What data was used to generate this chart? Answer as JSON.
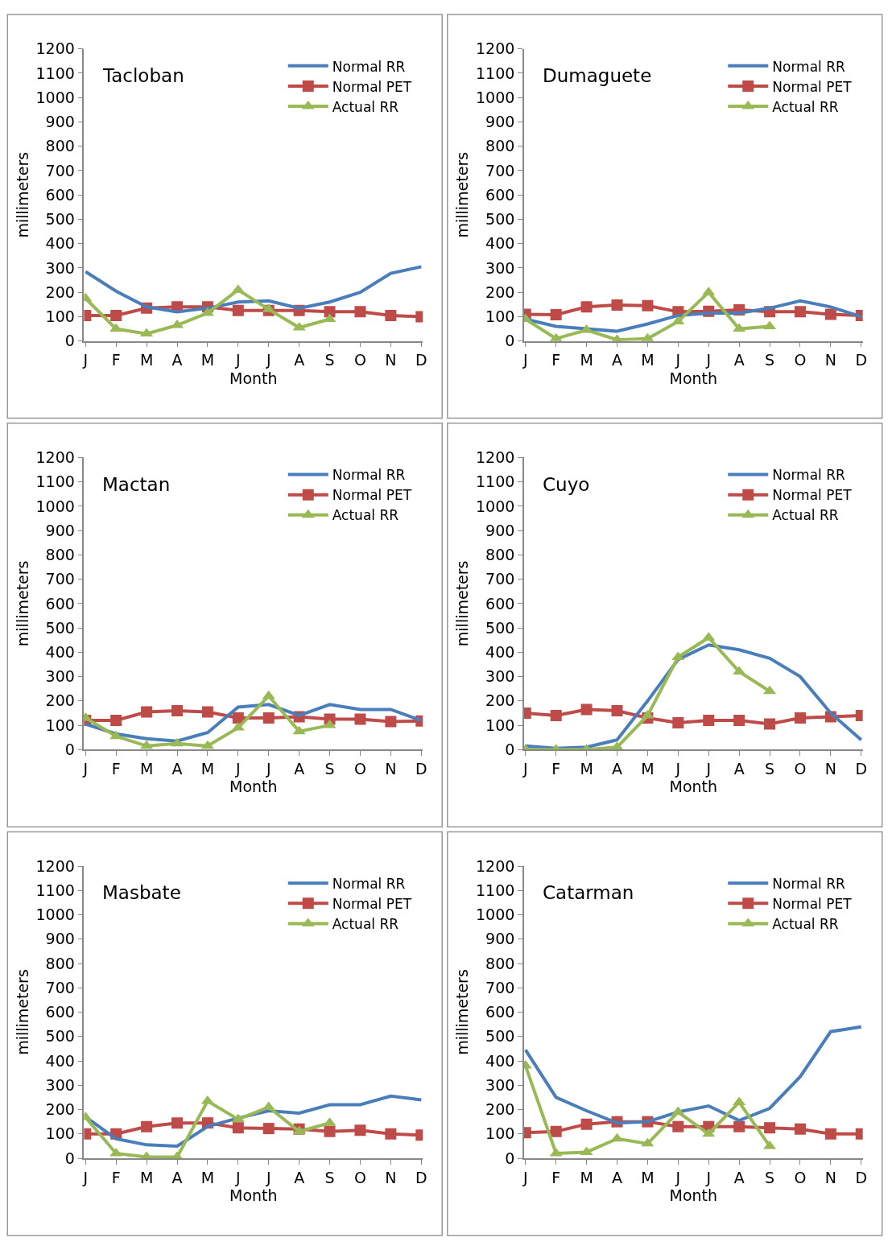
{
  "chart_data": [
    {
      "type": "line",
      "title": "Tacloban",
      "xlabel": "Month",
      "ylabel": "millimeters",
      "categories": [
        "J",
        "F",
        "M",
        "A",
        "M",
        "J",
        "J",
        "A",
        "S",
        "O",
        "N",
        "D"
      ],
      "ylim": [
        0,
        1200
      ],
      "yticks": [
        0,
        100,
        200,
        300,
        400,
        500,
        600,
        700,
        800,
        900,
        1000,
        1100,
        1200
      ],
      "legend": "top right",
      "series": [
        {
          "name": "Normal RR",
          "color": "#4a7ebb",
          "marker": "none",
          "values": [
            285,
            205,
            140,
            120,
            135,
            160,
            165,
            135,
            160,
            200,
            278,
            305
          ]
        },
        {
          "name": "Normal PET",
          "color": "#be4b48",
          "marker": "square",
          "values": [
            105,
            105,
            135,
            140,
            140,
            125,
            125,
            125,
            120,
            120,
            105,
            100
          ]
        },
        {
          "name": "Actual RR",
          "color": "#98b954",
          "marker": "triangle",
          "values": [
            175,
            50,
            30,
            65,
            115,
            210,
            130,
            55,
            90,
            null,
            null,
            null
          ]
        }
      ]
    },
    {
      "type": "line",
      "title": "Dumaguete",
      "xlabel": "Month",
      "ylabel": "millimeters",
      "categories": [
        "J",
        "F",
        "M",
        "A",
        "M",
        "J",
        "J",
        "A",
        "S",
        "O",
        "N",
        "D"
      ],
      "ylim": [
        0,
        1200
      ],
      "yticks": [
        0,
        100,
        200,
        300,
        400,
        500,
        600,
        700,
        800,
        900,
        1000,
        1100,
        1200
      ],
      "legend": "top right",
      "series": [
        {
          "name": "Normal RR",
          "color": "#4a7ebb",
          "marker": "none",
          "values": [
            90,
            60,
            50,
            40,
            70,
            105,
            115,
            115,
            135,
            165,
            140,
            100
          ]
        },
        {
          "name": "Normal PET",
          "color": "#be4b48",
          "marker": "square",
          "values": [
            110,
            108,
            140,
            148,
            145,
            120,
            122,
            128,
            120,
            120,
            110,
            105
          ]
        },
        {
          "name": "Actual RR",
          "color": "#98b954",
          "marker": "triangle",
          "values": [
            90,
            10,
            45,
            5,
            10,
            80,
            200,
            50,
            60,
            null,
            null,
            null
          ]
        }
      ]
    },
    {
      "type": "line",
      "title": "Mactan",
      "xlabel": "Month",
      "ylabel": "millimeters",
      "categories": [
        "J",
        "F",
        "M",
        "A",
        "M",
        "J",
        "J",
        "A",
        "S",
        "O",
        "N",
        "D"
      ],
      "ylim": [
        0,
        1200
      ],
      "yticks": [
        0,
        100,
        200,
        300,
        400,
        500,
        600,
        700,
        800,
        900,
        1000,
        1100,
        1200
      ],
      "legend": "top right",
      "series": [
        {
          "name": "Normal RR",
          "color": "#4a7ebb",
          "marker": "none",
          "values": [
            105,
            65,
            45,
            35,
            70,
            175,
            185,
            140,
            185,
            165,
            165,
            120
          ]
        },
        {
          "name": "Normal PET",
          "color": "#be4b48",
          "marker": "square",
          "values": [
            120,
            120,
            155,
            160,
            155,
            130,
            130,
            135,
            125,
            125,
            115,
            118
          ]
        },
        {
          "name": "Actual RR",
          "color": "#98b954",
          "marker": "triangle",
          "values": [
            130,
            55,
            15,
            25,
            15,
            90,
            220,
            75,
            100,
            null,
            null,
            null
          ]
        }
      ]
    },
    {
      "type": "line",
      "title": "Cuyo",
      "xlabel": "Month",
      "ylabel": "millimeters",
      "categories": [
        "J",
        "F",
        "M",
        "A",
        "M",
        "J",
        "J",
        "A",
        "S",
        "O",
        "N",
        "D"
      ],
      "ylim": [
        0,
        1200
      ],
      "yticks": [
        0,
        100,
        200,
        300,
        400,
        500,
        600,
        700,
        800,
        900,
        1000,
        1100,
        1200
      ],
      "legend": "top right",
      "series": [
        {
          "name": "Normal RR",
          "color": "#4a7ebb",
          "marker": "none",
          "values": [
            15,
            5,
            10,
            40,
            200,
            370,
            430,
            410,
            375,
            300,
            150,
            40
          ]
        },
        {
          "name": "Normal PET",
          "color": "#be4b48",
          "marker": "square",
          "values": [
            150,
            140,
            165,
            160,
            130,
            110,
            120,
            120,
            105,
            130,
            135,
            140
          ]
        },
        {
          "name": "Actual RR",
          "color": "#98b954",
          "marker": "triangle",
          "values": [
            0,
            0,
            0,
            10,
            140,
            380,
            460,
            320,
            240,
            null,
            null,
            null
          ]
        }
      ]
    },
    {
      "type": "line",
      "title": "Masbate",
      "xlabel": "Month",
      "ylabel": "millimeters",
      "categories": [
        "J",
        "F",
        "M",
        "A",
        "M",
        "J",
        "J",
        "A",
        "S",
        "O",
        "N",
        "D"
      ],
      "ylim": [
        0,
        1200
      ],
      "yticks": [
        0,
        100,
        200,
        300,
        400,
        500,
        600,
        700,
        800,
        900,
        1000,
        1100,
        1200
      ],
      "legend": "top right",
      "series": [
        {
          "name": "Normal RR",
          "color": "#4a7ebb",
          "marker": "none",
          "values": [
            170,
            80,
            55,
            50,
            130,
            165,
            195,
            185,
            220,
            220,
            255,
            240
          ]
        },
        {
          "name": "Normal PET",
          "color": "#be4b48",
          "marker": "square",
          "values": [
            100,
            100,
            130,
            145,
            145,
            125,
            122,
            120,
            110,
            115,
            100,
            95
          ]
        },
        {
          "name": "Actual RR",
          "color": "#98b954",
          "marker": "triangle",
          "values": [
            168,
            20,
            5,
            5,
            235,
            160,
            210,
            110,
            145,
            null,
            null,
            null
          ]
        }
      ]
    },
    {
      "type": "line",
      "title": "Catarman",
      "xlabel": "Month",
      "ylabel": "millimeters",
      "categories": [
        "J",
        "F",
        "M",
        "A",
        "M",
        "J",
        "J",
        "A",
        "S",
        "O",
        "N",
        "D"
      ],
      "ylim": [
        0,
        1200
      ],
      "yticks": [
        0,
        100,
        200,
        300,
        400,
        500,
        600,
        700,
        800,
        900,
        1000,
        1100,
        1200
      ],
      "legend": "top right",
      "series": [
        {
          "name": "Normal RR",
          "color": "#4a7ebb",
          "marker": "none",
          "values": [
            445,
            250,
            195,
            145,
            150,
            190,
            215,
            155,
            205,
            335,
            520,
            540
          ]
        },
        {
          "name": "Normal PET",
          "color": "#be4b48",
          "marker": "square",
          "values": [
            105,
            110,
            140,
            150,
            150,
            130,
            130,
            130,
            125,
            120,
            100,
            100
          ]
        },
        {
          "name": "Actual RR",
          "color": "#98b954",
          "marker": "triangle",
          "values": [
            380,
            20,
            25,
            80,
            60,
            190,
            100,
            230,
            50,
            null,
            null,
            null
          ]
        }
      ]
    }
  ]
}
